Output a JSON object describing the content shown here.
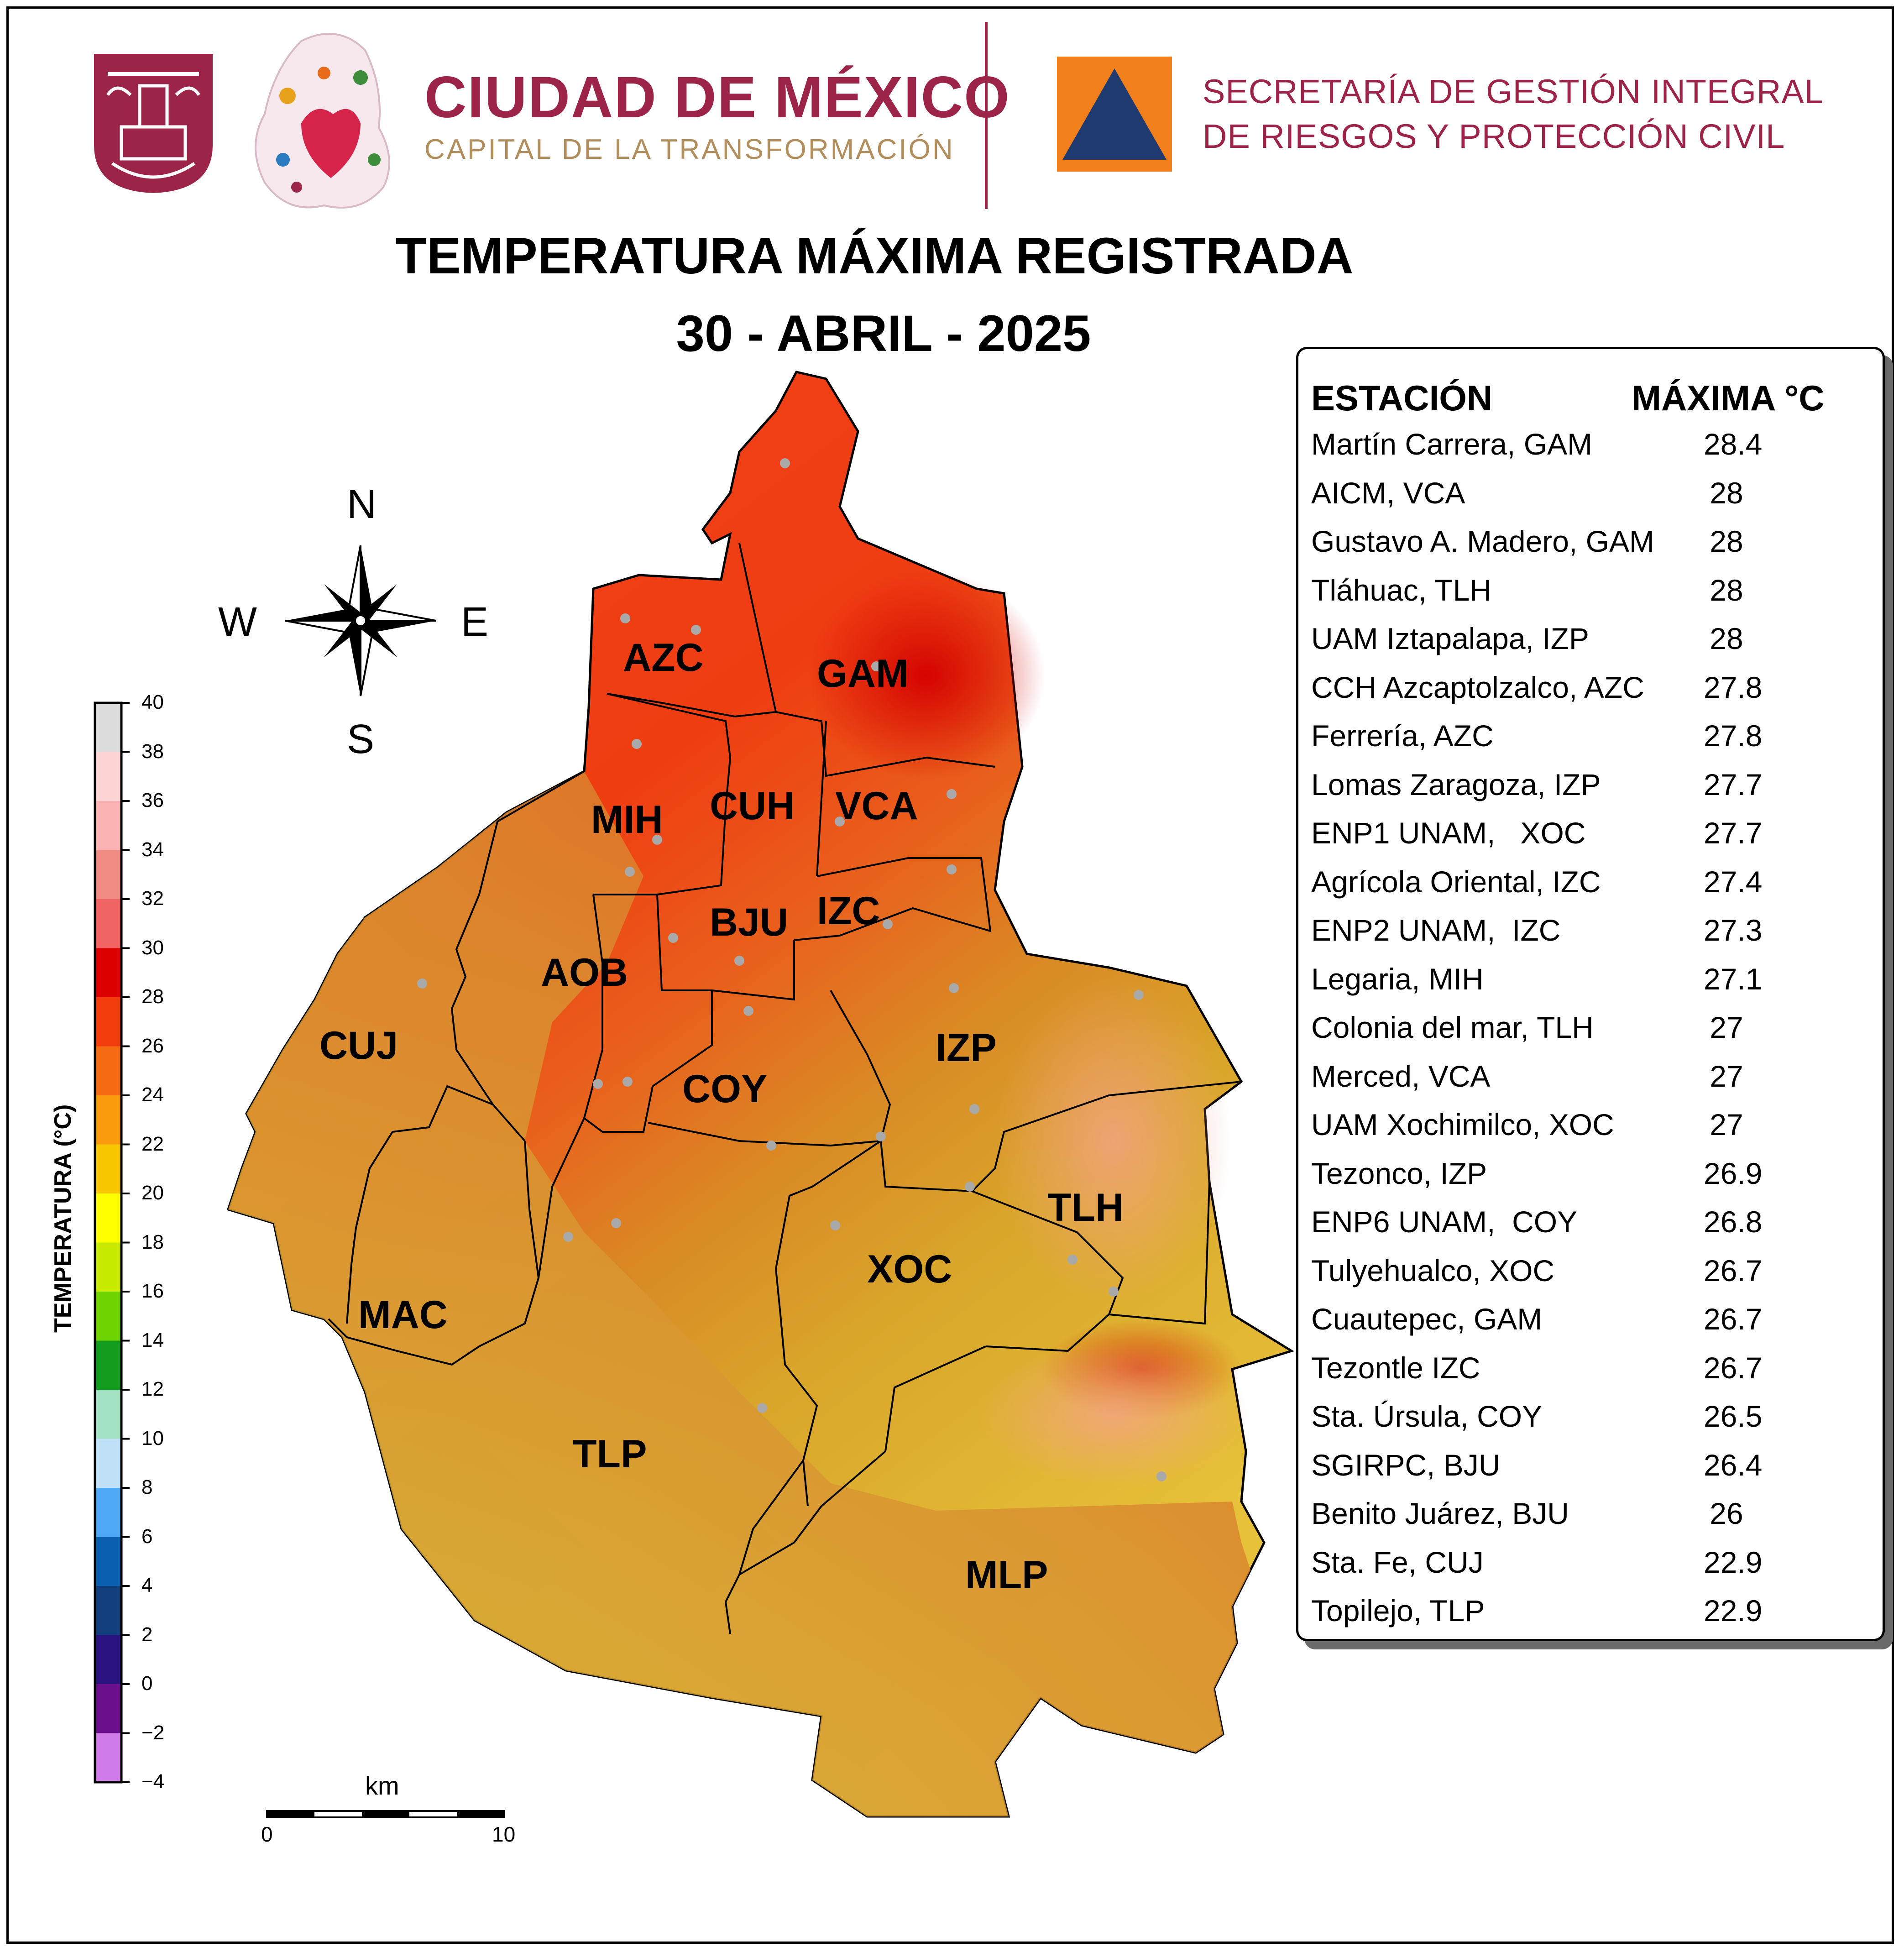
{
  "header": {
    "city_title": "CIUDAD DE MÉXICO",
    "city_subtitle": "CAPITAL DE LA TRANSFORMACIÓN",
    "agency_line1": "SECRETARÍA DE GESTIÓN INTEGRAL",
    "agency_line2": "DE RIESGOS Y PROTECCIÓN CIVIL",
    "brand_color": "#9d2449",
    "gold_color": "#b38e5d",
    "agency_logo_bg": "#f07f1c",
    "agency_logo_triangle": "#1f3a6e"
  },
  "title": {
    "line1": "TEMPERATURA MÁXIMA REGISTRADA",
    "line2": "30 - ABRIL - 2025"
  },
  "compass": {
    "n": "N",
    "s": "S",
    "e": "E",
    "w": "W"
  },
  "municipalities": [
    "AZC",
    "GAM",
    "MIH",
    "CUH",
    "VCA",
    "BJU",
    "IZC",
    "AOB",
    "CUJ",
    "COY",
    "IZP",
    "TLH",
    "XOC",
    "MAC",
    "TLP",
    "MLP"
  ],
  "colorbar": {
    "title": "TEMPERATURA (°C)",
    "ticks": [
      "40",
      "38",
      "36",
      "34",
      "32",
      "30",
      "28",
      "26",
      "24",
      "22",
      "20",
      "18",
      "16",
      "14",
      "12",
      "10",
      "8",
      "6",
      "4",
      "2",
      "0",
      "−2",
      "−4"
    ],
    "bands": [
      {
        "from": 38,
        "to": 40,
        "color": "#dcdcdc"
      },
      {
        "from": 36,
        "to": 38,
        "color": "#fdd5d5"
      },
      {
        "from": 34,
        "to": 36,
        "color": "#fbb3b3"
      },
      {
        "from": 32,
        "to": 34,
        "color": "#f08b83"
      },
      {
        "from": 30,
        "to": 32,
        "color": "#f06464"
      },
      {
        "from": 28,
        "to": 30,
        "color": "#dd0000"
      },
      {
        "from": 26,
        "to": 28,
        "color": "#f43d0c"
      },
      {
        "from": 24,
        "to": 26,
        "color": "#f56b12"
      },
      {
        "from": 22,
        "to": 24,
        "color": "#f99a0c"
      },
      {
        "from": 20,
        "to": 22,
        "color": "#f7c600"
      },
      {
        "from": 18,
        "to": 20,
        "color": "#ffff00"
      },
      {
        "from": 16,
        "to": 18,
        "color": "#c7ea00"
      },
      {
        "from": 14,
        "to": 16,
        "color": "#6ed300"
      },
      {
        "from": 12,
        "to": 14,
        "color": "#119c1c"
      },
      {
        "from": 10,
        "to": 12,
        "color": "#a3e1c3"
      },
      {
        "from": 8,
        "to": 10,
        "color": "#bfe0f6"
      },
      {
        "from": 6,
        "to": 8,
        "color": "#4ea8f5"
      },
      {
        "from": 4,
        "to": 6,
        "color": "#0a60b0"
      },
      {
        "from": 2,
        "to": 4,
        "color": "#123f7c"
      },
      {
        "from": 0,
        "to": 2,
        "color": "#2b1281"
      },
      {
        "from": -2,
        "to": 0,
        "color": "#6b0e8c"
      },
      {
        "from": -4,
        "to": -2,
        "color": "#d07ce8"
      }
    ]
  },
  "scale_bar": {
    "unit": "km",
    "min": "0",
    "max": "10"
  },
  "stations": {
    "header_name": "ESTACIÓN",
    "header_value": "MÁXIMA °C",
    "rows": [
      {
        "name": "Martín Carrera, GAM",
        "value": "28.4"
      },
      {
        "name": "AICM, VCA",
        "value": "28"
      },
      {
        "name": "Gustavo A. Madero, GAM",
        "value": "28"
      },
      {
        "name": "Tláhuac, TLH",
        "value": "28"
      },
      {
        "name": "UAM Iztapalapa, IZP",
        "value": "28"
      },
      {
        "name": "CCH Azcaptolzalco, AZC",
        "value": "27.8"
      },
      {
        "name": "Ferrería, AZC",
        "value": "27.8"
      },
      {
        "name": "Lomas Zaragoza, IZP",
        "value": "27.7"
      },
      {
        "name": "ENP1 UNAM,   XOC",
        "value": "27.7"
      },
      {
        "name": "Agrícola Oriental, IZC",
        "value": "27.4"
      },
      {
        "name": "ENP2 UNAM,  IZC",
        "value": "27.3"
      },
      {
        "name": "Legaria, MIH",
        "value": "27.1"
      },
      {
        "name": "Colonia del mar, TLH",
        "value": "27"
      },
      {
        "name": "Merced, VCA",
        "value": "27"
      },
      {
        "name": "UAM Xochimilco, XOC",
        "value": "27"
      },
      {
        "name": "Tezonco, IZP",
        "value": "26.9"
      },
      {
        "name": "ENP6 UNAM,  COY",
        "value": "26.8"
      },
      {
        "name": "Tulyehualco, XOC",
        "value": "26.7"
      },
      {
        "name": "Cuautepec, GAM",
        "value": "26.7"
      },
      {
        "name": "Tezontle IZC",
        "value": "26.7"
      },
      {
        "name": "Sta. Úrsula, COY",
        "value": "26.5"
      },
      {
        "name": "SGIRPC, BJU",
        "value": "26.4"
      },
      {
        "name": "Benito Juárez, BJU",
        "value": "26"
      },
      {
        "name": "Sta. Fe, CUJ",
        "value": "22.9"
      },
      {
        "name": "Topilejo, TLP",
        "value": "22.9"
      }
    ]
  }
}
